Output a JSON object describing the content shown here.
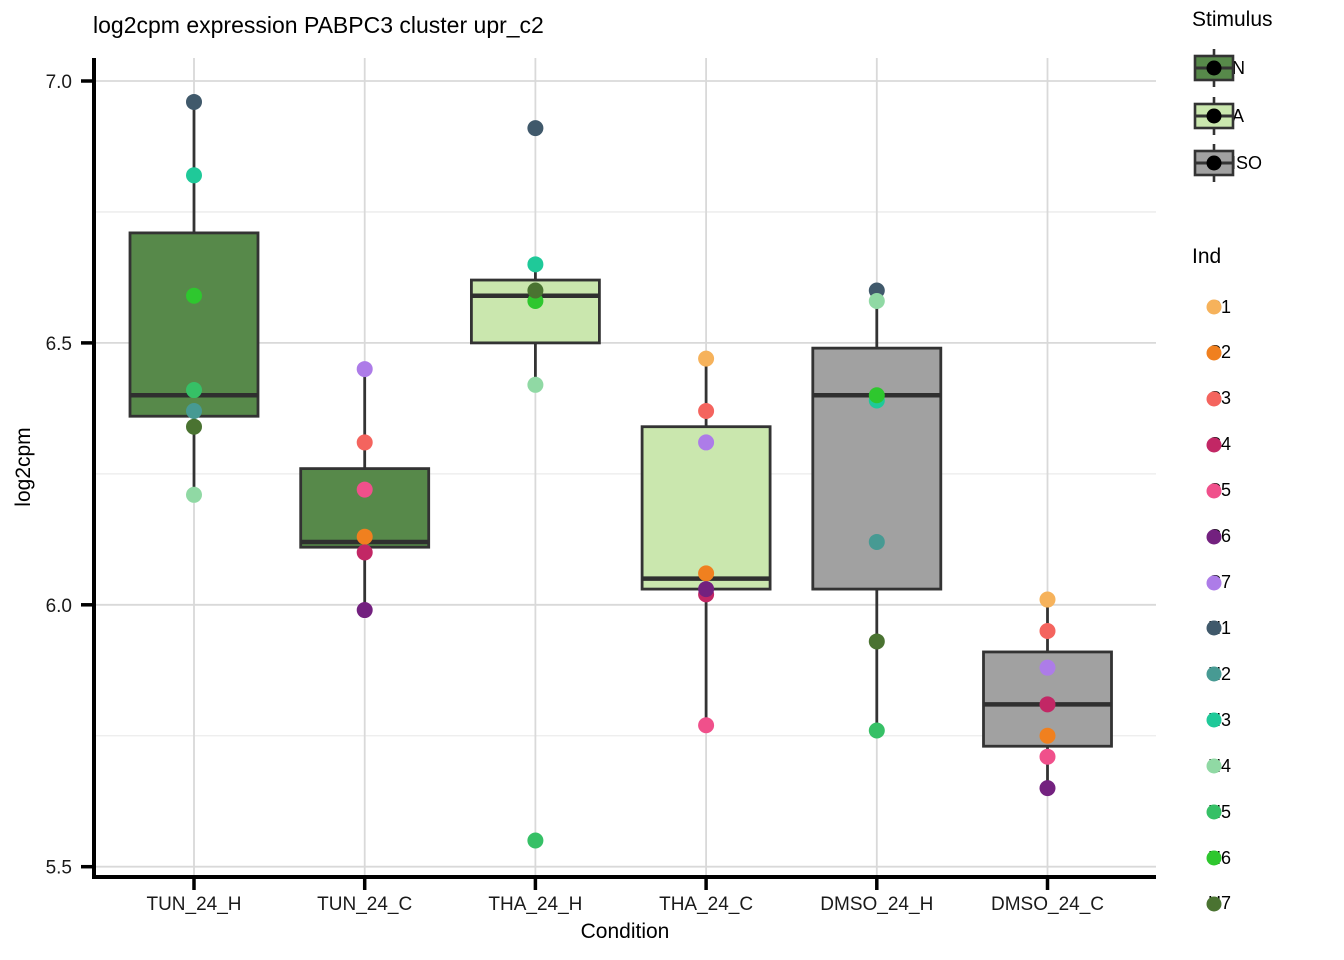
{
  "chart_data": {
    "type": "boxplot",
    "title": "log2cpm expression PABPC3 cluster upr_c2",
    "xlabel": "Condition",
    "ylabel": "log2cpm",
    "ylim": [
      5.48,
      7.04
    ],
    "y_ticks": [
      7.0,
      6.5,
      6.0,
      5.5
    ],
    "y_tick_labels": [
      "7.0",
      "6.5",
      "6.0",
      "5.5"
    ],
    "y_minor_gridlines": [
      6.75,
      6.25,
      5.75
    ],
    "grid": "horizontal major+minor, vertical major per category",
    "legend_position": "right",
    "categories": [
      "TUN_24_H",
      "TUN_24_C",
      "THA_24_H",
      "THA_24_C",
      "DMSO_24_H",
      "DMSO_24_C"
    ],
    "boxes": [
      {
        "condition": "TUN_24_H",
        "stimulus": "TUN",
        "q1": 6.36,
        "median": 6.4,
        "q3": 6.71,
        "whisker_low": 6.22,
        "whisker_high": 6.96,
        "points": [
          {
            "ind": "H1",
            "value": 6.96
          },
          {
            "ind": "H3",
            "value": 6.82
          },
          {
            "ind": "H6",
            "value": 6.59
          },
          {
            "ind": "H2",
            "value": 6.37
          },
          {
            "ind": "H5",
            "value": 6.41
          },
          {
            "ind": "H7",
            "value": 6.34
          },
          {
            "ind": "H4",
            "value": 6.21
          }
        ]
      },
      {
        "condition": "TUN_24_C",
        "stimulus": "TUN",
        "q1": 6.11,
        "median": 6.12,
        "q3": 6.26,
        "whisker_low": 5.99,
        "whisker_high": 6.45,
        "points": [
          {
            "ind": "C7",
            "value": 6.45
          },
          {
            "ind": "C3",
            "value": 6.31
          },
          {
            "ind": "C5",
            "value": 6.22
          },
          {
            "ind": "C2",
            "value": 6.13
          },
          {
            "ind": "C4",
            "value": 6.1
          },
          {
            "ind": "C6",
            "value": 5.99
          }
        ]
      },
      {
        "condition": "THA_24_H",
        "stimulus": "THA",
        "q1": 6.5,
        "median": 6.59,
        "q3": 6.62,
        "whisker_low": 6.42,
        "whisker_high": 6.65,
        "points": [
          {
            "ind": "H1",
            "value": 6.91
          },
          {
            "ind": "H3",
            "value": 6.65
          },
          {
            "ind": "H6",
            "value": 6.58
          },
          {
            "ind": "H7",
            "value": 6.6
          },
          {
            "ind": "H4",
            "value": 6.42
          },
          {
            "ind": "H5",
            "value": 5.55
          }
        ]
      },
      {
        "condition": "THA_24_C",
        "stimulus": "THA",
        "q1": 6.03,
        "median": 6.05,
        "q3": 6.34,
        "whisker_low": 5.77,
        "whisker_high": 6.47,
        "points": [
          {
            "ind": "C1",
            "value": 6.47
          },
          {
            "ind": "C3",
            "value": 6.37
          },
          {
            "ind": "C7",
            "value": 6.31
          },
          {
            "ind": "C2",
            "value": 6.06
          },
          {
            "ind": "C4",
            "value": 6.02
          },
          {
            "ind": "C6",
            "value": 6.03
          },
          {
            "ind": "C5",
            "value": 5.77
          }
        ]
      },
      {
        "condition": "DMSO_24_H",
        "stimulus": "DMSO",
        "q1": 6.03,
        "median": 6.4,
        "q3": 6.49,
        "whisker_low": 5.76,
        "whisker_high": 6.6,
        "points": [
          {
            "ind": "H1",
            "value": 6.6
          },
          {
            "ind": "H4",
            "value": 6.58
          },
          {
            "ind": "H3",
            "value": 6.39
          },
          {
            "ind": "H6",
            "value": 6.4
          },
          {
            "ind": "H2",
            "value": 6.12
          },
          {
            "ind": "H7",
            "value": 5.93
          },
          {
            "ind": "H5",
            "value": 5.76
          }
        ]
      },
      {
        "condition": "DMSO_24_C",
        "stimulus": "DMSO",
        "q1": 5.73,
        "median": 5.81,
        "q3": 5.91,
        "whisker_low": 5.65,
        "whisker_high": 6.01,
        "points": [
          {
            "ind": "C1",
            "value": 6.01
          },
          {
            "ind": "C3",
            "value": 5.95
          },
          {
            "ind": "C7",
            "value": 5.88
          },
          {
            "ind": "C4",
            "value": 5.81
          },
          {
            "ind": "C2",
            "value": 5.75
          },
          {
            "ind": "C5",
            "value": 5.71
          },
          {
            "ind": "C6",
            "value": 5.65
          }
        ]
      }
    ]
  },
  "legend_stimulus": {
    "title": "Stimulus",
    "items": [
      {
        "label": "TUN",
        "fill": "#57894a"
      },
      {
        "label": "THA",
        "fill": "#cae7ae"
      },
      {
        "label": "DMSO",
        "fill": "#a1a1a1"
      }
    ]
  },
  "legend_ind": {
    "title": "Ind",
    "items": [
      {
        "label": "C1",
        "color": "#f6b25b"
      },
      {
        "label": "C2",
        "color": "#f0801f"
      },
      {
        "label": "C3",
        "color": "#f4645e"
      },
      {
        "label": "C4",
        "color": "#c22765"
      },
      {
        "label": "C5",
        "color": "#f0508b"
      },
      {
        "label": "C6",
        "color": "#73217f"
      },
      {
        "label": "C7",
        "color": "#ad7ce8"
      },
      {
        "label": "H1",
        "color": "#40596b"
      },
      {
        "label": "H2",
        "color": "#479a93"
      },
      {
        "label": "H3",
        "color": "#1fc999"
      },
      {
        "label": "H4",
        "color": "#90d9a4"
      },
      {
        "label": "H5",
        "color": "#36c066"
      },
      {
        "label": "H6",
        "color": "#2ec72e"
      },
      {
        "label": "H7",
        "color": "#4a7331"
      }
    ]
  },
  "colors": {
    "box_border": "#333333",
    "median_line": "#2f2f2f",
    "whisker": "#333333",
    "grid_major": "#d9d9d9",
    "grid_minor": "#ebebeb",
    "axis_line": "#000000",
    "tick_text": "#1a1a1a",
    "stimulus_fill": {
      "TUN": "#57894a",
      "THA": "#cae7ae",
      "DMSO": "#a1a1a1"
    },
    "ind": {
      "C1": "#f6b25b",
      "C2": "#f0801f",
      "C3": "#f4645e",
      "C4": "#c22765",
      "C5": "#f0508b",
      "C6": "#73217f",
      "C7": "#ad7ce8",
      "H1": "#40596b",
      "H2": "#479a93",
      "H3": "#1fc999",
      "H4": "#90d9a4",
      "H5": "#36c066",
      "H6": "#2ec72e",
      "H7": "#4a7331"
    }
  }
}
